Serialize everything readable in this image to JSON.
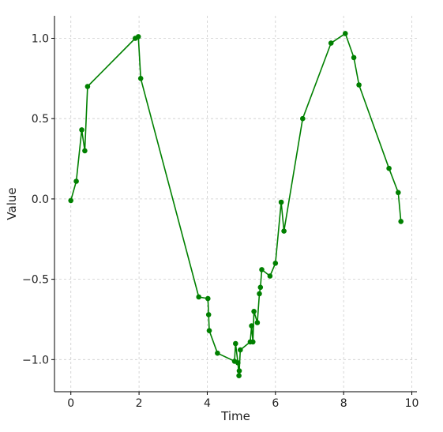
{
  "chart_data": {
    "type": "line",
    "title": "",
    "xlabel": "Time",
    "ylabel": "Value",
    "xlim": [
      -0.48,
      10.15
    ],
    "ylim": [
      -1.2,
      1.14
    ],
    "xticks": [
      0,
      2,
      4,
      6,
      8,
      10
    ],
    "yticks": [
      -1.0,
      -0.5,
      0.0,
      0.5,
      1.0
    ],
    "xtick_labels": [
      "0",
      "2",
      "4",
      "6",
      "8",
      "10"
    ],
    "ytick_labels": [
      "−1.0",
      "−0.5",
      "0.0",
      "0.5",
      "1.0"
    ],
    "grid": true,
    "legend": false,
    "color": "#008000",
    "marker": "circle",
    "series": [
      {
        "x": [
          0.0,
          0.16,
          0.32,
          0.41,
          0.49,
          1.89,
          1.98,
          2.05,
          3.75,
          4.02,
          4.04,
          4.06,
          4.3,
          4.8,
          4.83,
          4.9,
          4.93,
          4.94,
          4.97,
          5.26,
          5.3,
          5.34,
          5.37,
          5.47,
          5.53,
          5.56,
          5.6,
          5.84,
          6.0,
          6.17,
          6.25,
          6.8,
          7.63,
          8.05,
          8.3,
          8.45,
          9.33,
          9.6,
          9.68
        ],
        "y": [
          -0.01,
          0.11,
          0.43,
          0.3,
          0.7,
          1.0,
          1.01,
          0.75,
          -0.61,
          -0.62,
          -0.72,
          -0.82,
          -0.96,
          -1.01,
          -0.9,
          -1.02,
          -1.1,
          -1.07,
          -0.94,
          -0.89,
          -0.79,
          -0.89,
          -0.7,
          -0.77,
          -0.59,
          -0.55,
          -0.44,
          -0.48,
          -0.4,
          -0.02,
          -0.2,
          0.5,
          0.97,
          1.03,
          0.88,
          0.71,
          0.19,
          0.04,
          -0.14
        ]
      }
    ]
  }
}
